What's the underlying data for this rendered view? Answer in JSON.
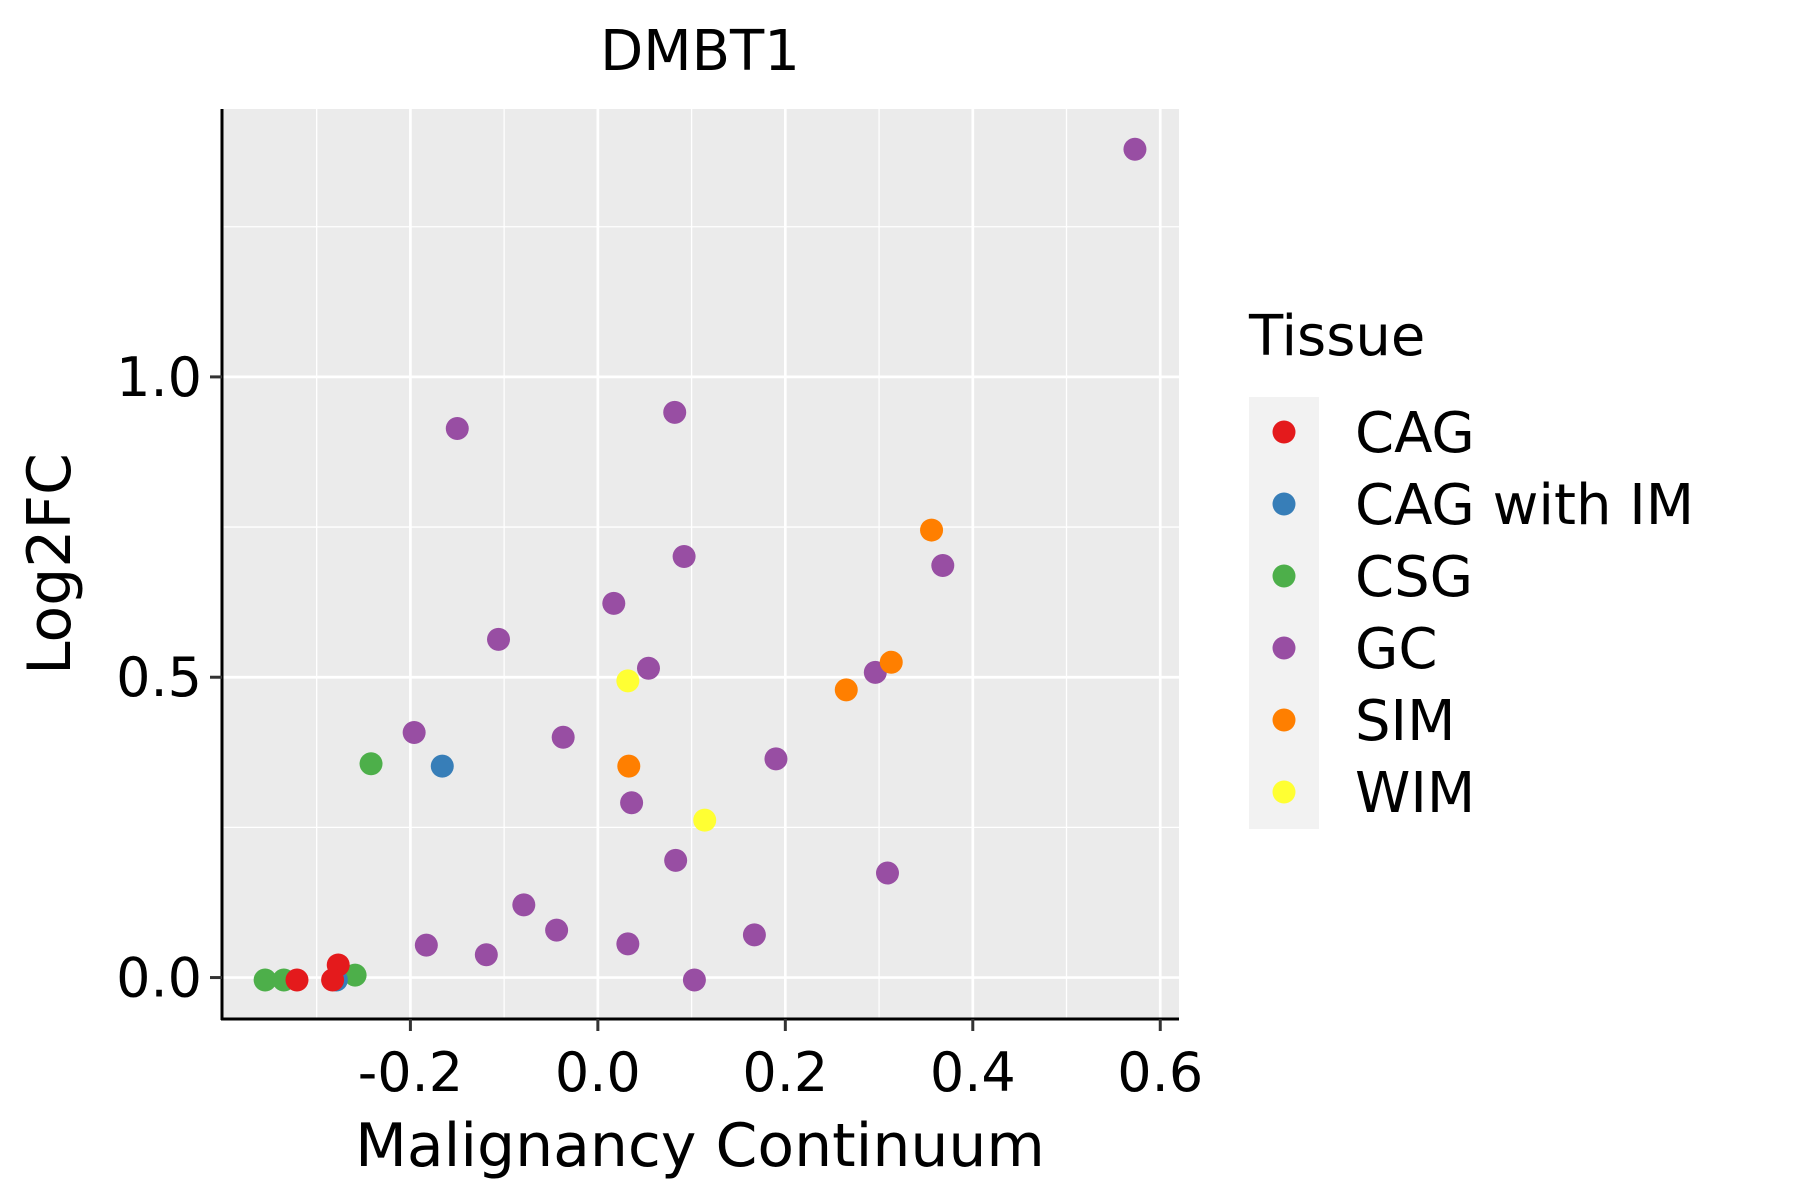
{
  "chart_data": {
    "type": "scatter",
    "title": "DMBT1",
    "xlabel": "Malignancy Continuum",
    "ylabel": "Log2FC",
    "xlim": [
      -0.401,
      0.62
    ],
    "ylim": [
      -0.069,
      1.446
    ],
    "x_ticks": [
      -0.2,
      0.0,
      0.2,
      0.4,
      0.6
    ],
    "x_tick_labels": [
      "-0.2",
      "0.0",
      "0.2",
      "0.4",
      "0.6"
    ],
    "y_ticks": [
      0.0,
      0.5,
      1.0
    ],
    "y_tick_labels": [
      "0.0",
      "0.5",
      "1.0"
    ],
    "grid": true,
    "legend": {
      "title": "Tissue",
      "placement": "right"
    },
    "series": [
      {
        "name": "GC",
        "color": "#984EA3",
        "points": [
          [
            0.573,
            1.379
          ],
          [
            0.082,
            0.941
          ],
          [
            -0.15,
            0.914
          ],
          [
            0.092,
            0.701
          ],
          [
            0.368,
            0.686
          ],
          [
            0.017,
            0.623
          ],
          [
            -0.106,
            0.563
          ],
          [
            0.054,
            0.515
          ],
          [
            0.296,
            0.508
          ],
          [
            -0.196,
            0.408
          ],
          [
            -0.037,
            0.4
          ],
          [
            0.19,
            0.364
          ],
          [
            0.036,
            0.291
          ],
          [
            0.083,
            0.195
          ],
          [
            0.309,
            0.174
          ],
          [
            -0.079,
            0.121
          ],
          [
            -0.044,
            0.079
          ],
          [
            -0.183,
            0.054
          ],
          [
            0.032,
            0.056
          ],
          [
            0.167,
            0.071
          ],
          [
            -0.119,
            0.038
          ],
          [
            0.103,
            -0.004
          ]
        ]
      },
      {
        "name": "SIM",
        "color": "#FF7F00",
        "points": [
          [
            0.356,
            0.745
          ],
          [
            0.313,
            0.525
          ],
          [
            0.265,
            0.479
          ],
          [
            0.033,
            0.352
          ]
        ]
      },
      {
        "name": "WIM",
        "color": "#FFFF33",
        "points": [
          [
            0.032,
            0.494
          ],
          [
            0.114,
            0.262
          ]
        ]
      },
      {
        "name": "CSG",
        "color": "#4DAF4A",
        "points": [
          [
            -0.242,
            0.356
          ],
          [
            -0.355,
            -0.004
          ],
          [
            -0.335,
            -0.004
          ],
          [
            -0.259,
            0.004
          ]
        ]
      },
      {
        "name": "CAG with IM",
        "color": "#377EB8",
        "points": [
          [
            -0.166,
            0.352
          ],
          [
            -0.279,
            -0.004
          ]
        ]
      },
      {
        "name": "CAG",
        "color": "#E41A1C",
        "points": [
          [
            -0.321,
            -0.004
          ],
          [
            -0.277,
            0.021
          ],
          [
            -0.283,
            -0.004
          ]
        ]
      }
    ],
    "legend_order": [
      "CAG",
      "CAG with IM",
      "CSG",
      "GC",
      "SIM",
      "WIM"
    ]
  }
}
